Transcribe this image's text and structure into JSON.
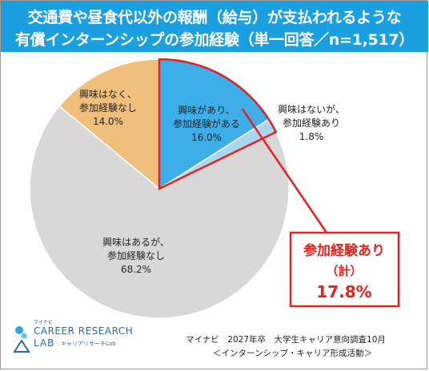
{
  "title": {
    "line1": "交通費や昼食代以外の報酬（給与）が支払われるような",
    "line2": "有償インターンシップの参加経験（単一回答／n=1,517）"
  },
  "chart_data": {
    "type": "pie",
    "slices": [
      {
        "label_line1": "興味があり、",
        "label_line2": "参加経験がある",
        "value_text": "16.0%",
        "value": 16.0,
        "color": "#3eaee8"
      },
      {
        "label_line1": "興味はないが、",
        "label_line2": "参加経験あり",
        "value_text": "1.8%",
        "value": 1.8,
        "color": "#a9d6f0"
      },
      {
        "label_line1": "興味はあるが、",
        "label_line2": "参加経験なし",
        "value_text": "68.2%",
        "value": 68.2,
        "color": "#d8d8d8"
      },
      {
        "label_line1": "興味はなく、",
        "label_line2": "参加経験なし",
        "value_text": "14.0%",
        "value": 14.0,
        "color": "#f0bf7c"
      }
    ],
    "callout": {
      "line1": "参加経験あり",
      "line2": "（計）",
      "value_text": "17.8%",
      "value": 17.8,
      "color": "#e8201e"
    }
  },
  "source": {
    "line1": "マイナビ　2027年卒　大学生キャリア意向調査10月",
    "line2": "＜インターンシップ・キャリア形成活動＞"
  },
  "logo": {
    "sub": "マイナビ",
    "main1": "CAREER RESEARCH",
    "main2": "LAB",
    "tag": "キャリアリサーチLab"
  }
}
